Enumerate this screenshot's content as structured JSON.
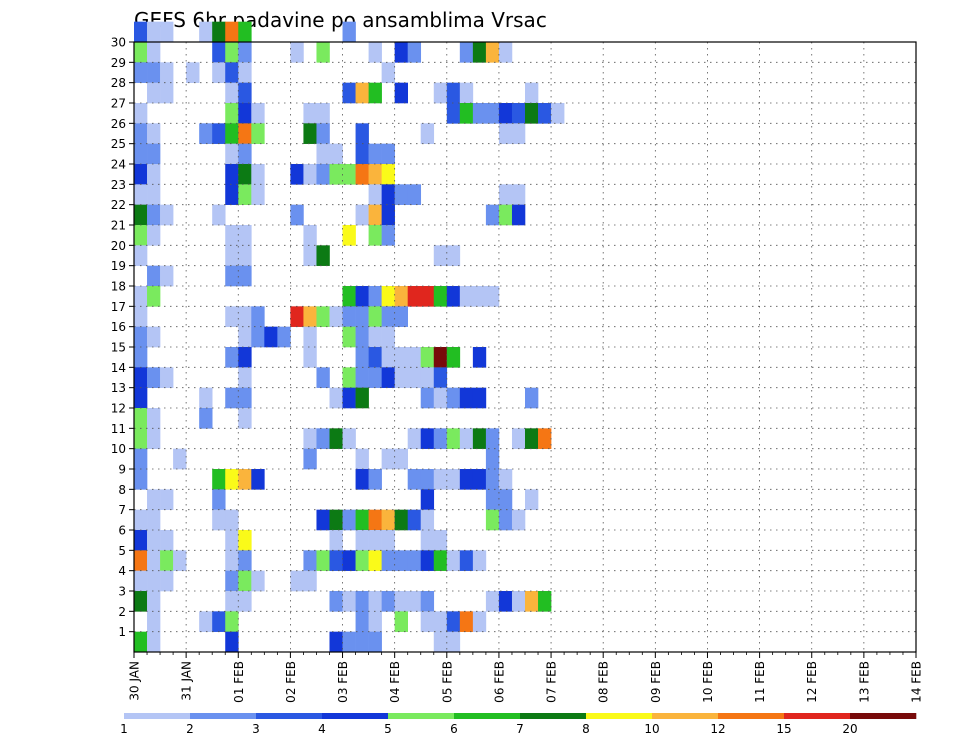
{
  "chart_data": {
    "type": "heatmap",
    "title": "GEFS 6hr padavine po ansamblima Vrsac",
    "xlabel": "",
    "ylabel": "",
    "x_tick_labels": [
      "30 JAN",
      "31 JAN",
      "01 FEB",
      "02 FEB",
      "03 FEB",
      "04 FEB",
      "05 FEB",
      "06 FEB",
      "07 FEB",
      "08 FEB",
      "09 FEB",
      "10 FEB",
      "11 FEB",
      "12 FEB",
      "13 FEB",
      "14 FEB"
    ],
    "y_tick_labels": [
      "1",
      "2",
      "3",
      "4",
      "5",
      "6",
      "7",
      "8",
      "9",
      "10",
      "11",
      "12",
      "13",
      "14",
      "15",
      "16",
      "17",
      "18",
      "19",
      "20",
      "21",
      "22",
      "23",
      "24",
      "25",
      "26",
      "27",
      "28",
      "29",
      "30"
    ],
    "xlim": [
      0,
      60
    ],
    "ylim": [
      0,
      30
    ],
    "grid": true,
    "legend": {
      "placement": "bottom",
      "labels": [
        "1",
        "2",
        "3",
        "4",
        "5",
        "6",
        "7",
        "8",
        "10",
        "12",
        "15",
        "20"
      ],
      "colors": [
        "#b4c5f5",
        "#6a91ef",
        "#2a58e2",
        "#1237d8",
        "#7aea5e",
        "#22be22",
        "#0c7a14",
        "#fafa19",
        "#fab43c",
        "#f57614",
        "#e0261e",
        "#780a0a"
      ]
    },
    "cells": [
      [
        0,
        30,
        2
      ],
      [
        1,
        30,
        0
      ],
      [
        2,
        30,
        0
      ],
      [
        5,
        30,
        0
      ],
      [
        6,
        30,
        6
      ],
      [
        7,
        30,
        9
      ],
      [
        8,
        30,
        5
      ],
      [
        16,
        30,
        1
      ],
      [
        0,
        29,
        4
      ],
      [
        1,
        29,
        0
      ],
      [
        6,
        29,
        2
      ],
      [
        7,
        29,
        4
      ],
      [
        8,
        29,
        1
      ],
      [
        12,
        29,
        0
      ],
      [
        14,
        29,
        4
      ],
      [
        18,
        29,
        0
      ],
      [
        20,
        29,
        3
      ],
      [
        21,
        29,
        1
      ],
      [
        25,
        29,
        1
      ],
      [
        26,
        29,
        6
      ],
      [
        27,
        29,
        8
      ],
      [
        28,
        29,
        0
      ],
      [
        0,
        28,
        1
      ],
      [
        1,
        28,
        1
      ],
      [
        2,
        28,
        0
      ],
      [
        4,
        28,
        0
      ],
      [
        6,
        28,
        0
      ],
      [
        7,
        28,
        2
      ],
      [
        8,
        28,
        0
      ],
      [
        19,
        28,
        0
      ],
      [
        1,
        27,
        0
      ],
      [
        2,
        27,
        0
      ],
      [
        7,
        27,
        0
      ],
      [
        8,
        27,
        2
      ],
      [
        16,
        27,
        2
      ],
      [
        17,
        27,
        8
      ],
      [
        18,
        27,
        5
      ],
      [
        20,
        27,
        3
      ],
      [
        23,
        27,
        0
      ],
      [
        24,
        27,
        2
      ],
      [
        25,
        27,
        0
      ],
      [
        30,
        27,
        0
      ],
      [
        0,
        26,
        0
      ],
      [
        7,
        26,
        4
      ],
      [
        8,
        26,
        3
      ],
      [
        9,
        26,
        0
      ],
      [
        13,
        26,
        0
      ],
      [
        14,
        26,
        0
      ],
      [
        24,
        26,
        2
      ],
      [
        25,
        26,
        5
      ],
      [
        26,
        26,
        1
      ],
      [
        27,
        26,
        1
      ],
      [
        28,
        26,
        3
      ],
      [
        29,
        26,
        2
      ],
      [
        30,
        26,
        6
      ],
      [
        31,
        26,
        2
      ],
      [
        32,
        26,
        0
      ],
      [
        0,
        25,
        1
      ],
      [
        1,
        25,
        0
      ],
      [
        5,
        25,
        1
      ],
      [
        6,
        25,
        2
      ],
      [
        7,
        25,
        5
      ],
      [
        8,
        25,
        9
      ],
      [
        9,
        25,
        4
      ],
      [
        13,
        25,
        6
      ],
      [
        14,
        25,
        1
      ],
      [
        17,
        25,
        2
      ],
      [
        22,
        25,
        0
      ],
      [
        28,
        25,
        0
      ],
      [
        29,
        25,
        0
      ],
      [
        0,
        24,
        1
      ],
      [
        1,
        24,
        1
      ],
      [
        7,
        24,
        0
      ],
      [
        8,
        24,
        1
      ],
      [
        14,
        24,
        0
      ],
      [
        15,
        24,
        0
      ],
      [
        17,
        24,
        2
      ],
      [
        18,
        24,
        1
      ],
      [
        19,
        24,
        1
      ],
      [
        0,
        23,
        3
      ],
      [
        1,
        23,
        0
      ],
      [
        7,
        23,
        3
      ],
      [
        8,
        23,
        6
      ],
      [
        9,
        23,
        0
      ],
      [
        12,
        23,
        3
      ],
      [
        13,
        23,
        0
      ],
      [
        14,
        23,
        1
      ],
      [
        15,
        23,
        4
      ],
      [
        16,
        23,
        4
      ],
      [
        17,
        23,
        9
      ],
      [
        18,
        23,
        8
      ],
      [
        19,
        23,
        7
      ],
      [
        0,
        22,
        0
      ],
      [
        1,
        22,
        0
      ],
      [
        7,
        22,
        3
      ],
      [
        8,
        22,
        4
      ],
      [
        9,
        22,
        0
      ],
      [
        18,
        22,
        0
      ],
      [
        19,
        22,
        3
      ],
      [
        20,
        22,
        1
      ],
      [
        21,
        22,
        1
      ],
      [
        28,
        22,
        0
      ],
      [
        29,
        22,
        0
      ],
      [
        0,
        21,
        6
      ],
      [
        1,
        21,
        1
      ],
      [
        2,
        21,
        0
      ],
      [
        6,
        21,
        0
      ],
      [
        12,
        21,
        1
      ],
      [
        17,
        21,
        0
      ],
      [
        18,
        21,
        8
      ],
      [
        19,
        21,
        3
      ],
      [
        27,
        21,
        1
      ],
      [
        28,
        21,
        4
      ],
      [
        29,
        21,
        3
      ],
      [
        0,
        20,
        4
      ],
      [
        1,
        20,
        0
      ],
      [
        7,
        20,
        0
      ],
      [
        8,
        20,
        0
      ],
      [
        13,
        20,
        0
      ],
      [
        16,
        20,
        7
      ],
      [
        18,
        20,
        4
      ],
      [
        19,
        20,
        1
      ],
      [
        0,
        19,
        0
      ],
      [
        7,
        19,
        0
      ],
      [
        8,
        19,
        0
      ],
      [
        13,
        19,
        0
      ],
      [
        14,
        19,
        6
      ],
      [
        23,
        19,
        0
      ],
      [
        24,
        19,
        0
      ],
      [
        1,
        18,
        1
      ],
      [
        2,
        18,
        0
      ],
      [
        7,
        18,
        1
      ],
      [
        8,
        18,
        1
      ],
      [
        0,
        17,
        0
      ],
      [
        1,
        17,
        4
      ],
      [
        16,
        17,
        5
      ],
      [
        17,
        17,
        3
      ],
      [
        18,
        17,
        1
      ],
      [
        19,
        17,
        7
      ],
      [
        20,
        17,
        8
      ],
      [
        21,
        17,
        10
      ],
      [
        22,
        17,
        10
      ],
      [
        23,
        17,
        5
      ],
      [
        24,
        17,
        3
      ],
      [
        25,
        17,
        0
      ],
      [
        26,
        17,
        0
      ],
      [
        27,
        17,
        0
      ],
      [
        0,
        16,
        0
      ],
      [
        7,
        16,
        0
      ],
      [
        8,
        16,
        0
      ],
      [
        9,
        16,
        1
      ],
      [
        12,
        16,
        10
      ],
      [
        13,
        16,
        8
      ],
      [
        14,
        16,
        4
      ],
      [
        15,
        16,
        0
      ],
      [
        16,
        16,
        1
      ],
      [
        17,
        16,
        1
      ],
      [
        18,
        16,
        4
      ],
      [
        19,
        16,
        1
      ],
      [
        20,
        16,
        1
      ],
      [
        0,
        15,
        1
      ],
      [
        1,
        15,
        0
      ],
      [
        8,
        15,
        0
      ],
      [
        9,
        15,
        1
      ],
      [
        10,
        15,
        3
      ],
      [
        11,
        15,
        1
      ],
      [
        13,
        15,
        0
      ],
      [
        16,
        15,
        4
      ],
      [
        17,
        15,
        1
      ],
      [
        18,
        15,
        0
      ],
      [
        19,
        15,
        0
      ],
      [
        0,
        14,
        1
      ],
      [
        7,
        14,
        1
      ],
      [
        8,
        14,
        3
      ],
      [
        13,
        14,
        0
      ],
      [
        17,
        14,
        1
      ],
      [
        18,
        14,
        2
      ],
      [
        19,
        14,
        0
      ],
      [
        20,
        14,
        0
      ],
      [
        21,
        14,
        0
      ],
      [
        22,
        14,
        4
      ],
      [
        23,
        14,
        11
      ],
      [
        24,
        14,
        5
      ],
      [
        26,
        14,
        3
      ],
      [
        0,
        13,
        3
      ],
      [
        1,
        13,
        1
      ],
      [
        2,
        13,
        0
      ],
      [
        8,
        13,
        0
      ],
      [
        14,
        13,
        1
      ],
      [
        16,
        13,
        4
      ],
      [
        17,
        13,
        1
      ],
      [
        18,
        13,
        1
      ],
      [
        19,
        13,
        3
      ],
      [
        20,
        13,
        0
      ],
      [
        21,
        13,
        0
      ],
      [
        22,
        13,
        0
      ],
      [
        23,
        13,
        2
      ],
      [
        0,
        12,
        3
      ],
      [
        5,
        12,
        0
      ],
      [
        7,
        12,
        1
      ],
      [
        8,
        12,
        1
      ],
      [
        15,
        12,
        0
      ],
      [
        16,
        12,
        3
      ],
      [
        17,
        12,
        6
      ],
      [
        22,
        12,
        1
      ],
      [
        23,
        12,
        0
      ],
      [
        24,
        12,
        1
      ],
      [
        25,
        12,
        3
      ],
      [
        26,
        12,
        3
      ],
      [
        30,
        12,
        1
      ],
      [
        0,
        11,
        4
      ],
      [
        1,
        11,
        0
      ],
      [
        5,
        11,
        1
      ],
      [
        8,
        11,
        0
      ],
      [
        0,
        10,
        4
      ],
      [
        1,
        10,
        0
      ],
      [
        13,
        10,
        0
      ],
      [
        14,
        10,
        1
      ],
      [
        15,
        10,
        6
      ],
      [
        16,
        10,
        0
      ],
      [
        21,
        10,
        0
      ],
      [
        22,
        10,
        3
      ],
      [
        23,
        10,
        1
      ],
      [
        24,
        10,
        4
      ],
      [
        25,
        10,
        0
      ],
      [
        26,
        10,
        6
      ],
      [
        27,
        10,
        1
      ],
      [
        29,
        10,
        0
      ],
      [
        30,
        10,
        6
      ],
      [
        31,
        10,
        9
      ],
      [
        0,
        9,
        1
      ],
      [
        3,
        9,
        0
      ],
      [
        13,
        9,
        1
      ],
      [
        17,
        9,
        0
      ],
      [
        19,
        9,
        0
      ],
      [
        20,
        9,
        0
      ],
      [
        27,
        9,
        1
      ],
      [
        0,
        8,
        1
      ],
      [
        6,
        8,
        5
      ],
      [
        7,
        8,
        7
      ],
      [
        8,
        8,
        8
      ],
      [
        9,
        8,
        3
      ],
      [
        17,
        8,
        3
      ],
      [
        18,
        8,
        1
      ],
      [
        21,
        8,
        1
      ],
      [
        22,
        8,
        1
      ],
      [
        23,
        8,
        0
      ],
      [
        24,
        8,
        0
      ],
      [
        25,
        8,
        3
      ],
      [
        26,
        8,
        3
      ],
      [
        27,
        8,
        1
      ],
      [
        28,
        8,
        0
      ],
      [
        1,
        7,
        0
      ],
      [
        2,
        7,
        0
      ],
      [
        6,
        7,
        1
      ],
      [
        22,
        7,
        3
      ],
      [
        27,
        7,
        1
      ],
      [
        28,
        7,
        1
      ],
      [
        30,
        7,
        0
      ],
      [
        0,
        6,
        0
      ],
      [
        1,
        6,
        0
      ],
      [
        6,
        6,
        0
      ],
      [
        7,
        6,
        0
      ],
      [
        14,
        6,
        3
      ],
      [
        15,
        6,
        6
      ],
      [
        16,
        6,
        1
      ],
      [
        17,
        6,
        5
      ],
      [
        18,
        6,
        9
      ],
      [
        19,
        6,
        8
      ],
      [
        20,
        6,
        6
      ],
      [
        21,
        6,
        2
      ],
      [
        22,
        6,
        0
      ],
      [
        27,
        6,
        4
      ],
      [
        28,
        6,
        1
      ],
      [
        29,
        6,
        0
      ],
      [
        0,
        5,
        3
      ],
      [
        1,
        5,
        0
      ],
      [
        2,
        5,
        0
      ],
      [
        7,
        5,
        0
      ],
      [
        8,
        5,
        7
      ],
      [
        15,
        5,
        0
      ],
      [
        17,
        5,
        0
      ],
      [
        18,
        5,
        0
      ],
      [
        19,
        5,
        0
      ],
      [
        22,
        5,
        0
      ],
      [
        23,
        5,
        0
      ],
      [
        0,
        4,
        9
      ],
      [
        1,
        4,
        0
      ],
      [
        2,
        4,
        4
      ],
      [
        3,
        4,
        0
      ],
      [
        7,
        4,
        0
      ],
      [
        8,
        4,
        1
      ],
      [
        13,
        4,
        1
      ],
      [
        14,
        4,
        4
      ],
      [
        15,
        4,
        2
      ],
      [
        16,
        4,
        3
      ],
      [
        17,
        4,
        4
      ],
      [
        18,
        4,
        7
      ],
      [
        19,
        4,
        1
      ],
      [
        20,
        4,
        1
      ],
      [
        21,
        4,
        1
      ],
      [
        22,
        4,
        3
      ],
      [
        23,
        4,
        5
      ],
      [
        24,
        4,
        0
      ],
      [
        25,
        4,
        2
      ],
      [
        26,
        4,
        0
      ],
      [
        0,
        3,
        0
      ],
      [
        1,
        3,
        0
      ],
      [
        2,
        3,
        0
      ],
      [
        7,
        3,
        1
      ],
      [
        8,
        3,
        4
      ],
      [
        9,
        3,
        0
      ],
      [
        12,
        3,
        0
      ],
      [
        13,
        3,
        0
      ],
      [
        0,
        2,
        6
      ],
      [
        1,
        2,
        0
      ],
      [
        7,
        2,
        0
      ],
      [
        8,
        2,
        0
      ],
      [
        15,
        2,
        1
      ],
      [
        16,
        2,
        0
      ],
      [
        17,
        2,
        1
      ],
      [
        18,
        2,
        0
      ],
      [
        19,
        2,
        1
      ],
      [
        20,
        2,
        0
      ],
      [
        21,
        2,
        0
      ],
      [
        22,
        2,
        1
      ],
      [
        27,
        2,
        0
      ],
      [
        28,
        2,
        3
      ],
      [
        29,
        2,
        0
      ],
      [
        30,
        2,
        8
      ],
      [
        31,
        2,
        5
      ],
      [
        1,
        1,
        0
      ],
      [
        5,
        1,
        0
      ],
      [
        6,
        1,
        2
      ],
      [
        7,
        1,
        4
      ],
      [
        17,
        1,
        1
      ],
      [
        18,
        1,
        0
      ],
      [
        20,
        1,
        4
      ],
      [
        22,
        1,
        0
      ],
      [
        23,
        1,
        0
      ],
      [
        24,
        1,
        2
      ],
      [
        25,
        1,
        9
      ],
      [
        26,
        1,
        0
      ],
      [
        0,
        0,
        5
      ],
      [
        1,
        0,
        0
      ],
      [
        7,
        0,
        3
      ],
      [
        15,
        0,
        3
      ],
      [
        16,
        0,
        1
      ],
      [
        17,
        0,
        1
      ],
      [
        18,
        0,
        1
      ],
      [
        23,
        0,
        0
      ],
      [
        24,
        0,
        0
      ]
    ]
  }
}
